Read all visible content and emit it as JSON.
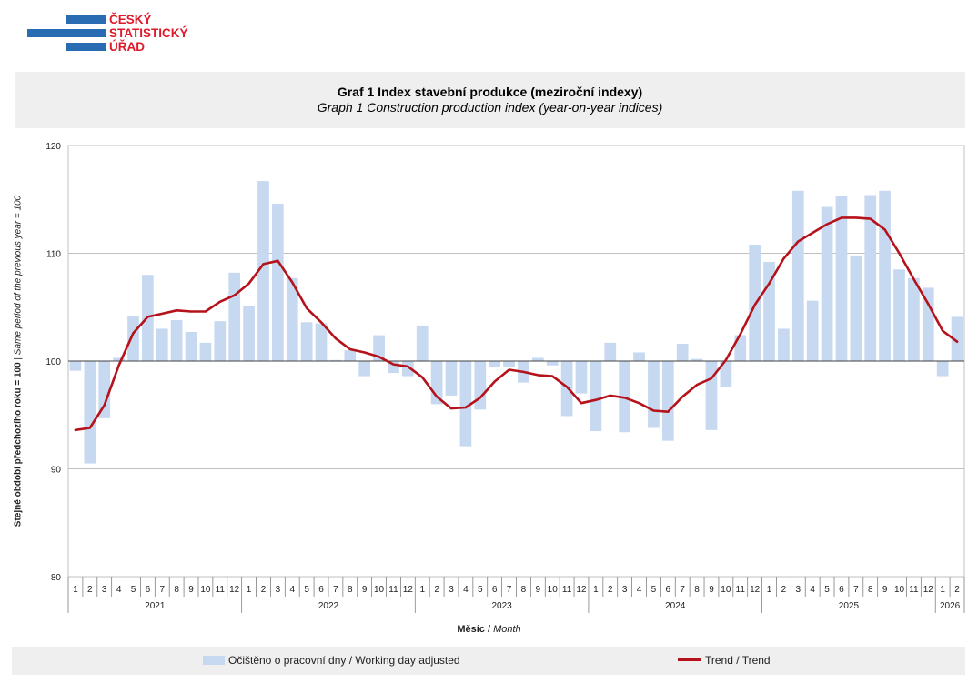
{
  "logo": {
    "line1": "ČESKÝ",
    "line2": "STATISTICKÝ",
    "line3": "ÚŘAD"
  },
  "header": {
    "title_cz": "Graf 1 Index stavební produkce (meziroční indexy)",
    "title_en": "Graph 1 Construction production index (year-on-year indices)"
  },
  "axes": {
    "y_label_cz": "Stejné období předchozího roku = 100",
    "y_label_sep": " | ",
    "y_label_en": "Same period of the previous year = 100",
    "x_label_cz": "Měsíc",
    "x_label_sep": " / ",
    "x_label_en": "Month"
  },
  "legend": {
    "bars_label": "Očištěno o pracovní dny / Working day adjusted",
    "line_label": "Trend / Trend"
  },
  "colors": {
    "bars": "#c6d9f1",
    "trend": "#b5121b",
    "grid": "#c0c0c0",
    "axis": "#808080"
  },
  "chart_data": {
    "type": "bar",
    "title": "Graf 1 Index stavební produkce (meziroční indexy)",
    "xlabel": "Měsíc / Month",
    "ylabel": "Stejné období předchozího roku = 100 | Same period of the previous year = 100",
    "ylim": [
      80,
      120
    ],
    "yticks": [
      80,
      90,
      100,
      110,
      120
    ],
    "baseline": 100,
    "years": [
      {
        "label": "2021",
        "months": 12
      },
      {
        "label": "2022",
        "months": 12
      },
      {
        "label": "2023",
        "months": 12
      },
      {
        "label": "2024",
        "months": 12
      },
      {
        "label": "2025",
        "months": 12
      },
      {
        "label": "2026",
        "months": 2
      }
    ],
    "categories": [
      "1",
      "2",
      "3",
      "4",
      "5",
      "6",
      "7",
      "8",
      "9",
      "10",
      "11",
      "12",
      "1",
      "2",
      "3",
      "4",
      "5",
      "6",
      "7",
      "8",
      "9",
      "10",
      "11",
      "12",
      "1",
      "2",
      "3",
      "4",
      "5",
      "6",
      "7",
      "8",
      "9",
      "10",
      "11",
      "12",
      "1",
      "2",
      "3",
      "4",
      "5",
      "6",
      "7",
      "8",
      "9",
      "10",
      "11",
      "12",
      "1",
      "2",
      "3",
      "4",
      "5",
      "6",
      "7",
      "8",
      "9",
      "10",
      "11",
      "12",
      "1",
      "2"
    ],
    "series": [
      {
        "name": "Očištěno o pracovní dny / Working day adjusted",
        "kind": "bar",
        "values": [
          99.1,
          90.5,
          94.7,
          100.3,
          104.2,
          108.0,
          103.0,
          103.8,
          102.7,
          101.7,
          103.7,
          108.2,
          105.1,
          116.7,
          114.6,
          107.7,
          103.6,
          103.5,
          100.1,
          101.0,
          98.6,
          102.4,
          98.9,
          98.6,
          103.3,
          96.0,
          96.8,
          92.1,
          95.5,
          99.4,
          99.4,
          98.0,
          100.3,
          99.6,
          94.9,
          97.0,
          93.5,
          101.7,
          93.4,
          100.8,
          93.8,
          92.6,
          101.6,
          100.2,
          93.6,
          97.6,
          102.4,
          110.8,
          109.2,
          103.0,
          115.8,
          105.6,
          114.3,
          115.3,
          109.8,
          115.4,
          115.8,
          108.5,
          107.7,
          106.8,
          98.6,
          104.1
        ]
      },
      {
        "name": "Trend / Trend",
        "kind": "line",
        "values": [
          93.6,
          93.8,
          95.9,
          99.6,
          102.6,
          104.1,
          104.4,
          104.7,
          104.6,
          104.6,
          105.5,
          106.1,
          107.2,
          109.0,
          109.3,
          107.3,
          104.9,
          103.6,
          102.1,
          101.1,
          100.8,
          100.4,
          99.7,
          99.5,
          98.5,
          96.7,
          95.6,
          95.7,
          96.6,
          98.1,
          99.2,
          99.0,
          98.7,
          98.6,
          97.6,
          96.1,
          96.4,
          96.8,
          96.6,
          96.1,
          95.4,
          95.3,
          96.7,
          97.8,
          98.4,
          100.1,
          102.5,
          105.2,
          107.2,
          109.5,
          111.1,
          111.9,
          112.7,
          113.3,
          113.3,
          113.2,
          112.2,
          110.0,
          107.6,
          105.3,
          102.8,
          101.8
        ]
      }
    ]
  }
}
